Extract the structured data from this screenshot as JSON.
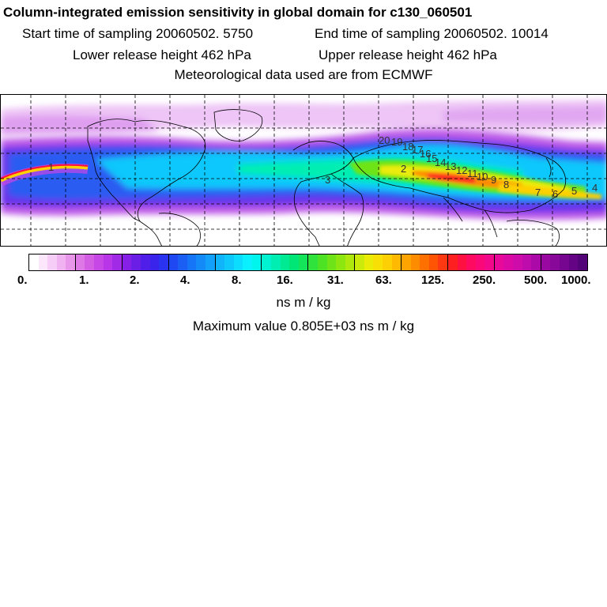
{
  "header": {
    "title": "Column-integrated emission sensitivity in global domain for c130_060501",
    "start_label": "Start time of sampling 20060502.  5750",
    "end_label": "End time of sampling 20060502. 10014",
    "lower_label": "Lower release height  462 hPa",
    "upper_label": "Upper release height  462 hPa",
    "met_label": "Meteorological data used are from ECMWF"
  },
  "map": {
    "trajectory_labels": [
      "20",
      "19",
      "18",
      "17",
      "16",
      "15",
      "14",
      "13",
      "12",
      "11",
      "10",
      "9",
      "8",
      "7",
      "6",
      "5",
      "4",
      "3",
      "2",
      "1"
    ]
  },
  "colorbar": {
    "tick_labels": [
      "0.",
      "1.",
      "2.",
      "4.",
      "8.",
      "16.",
      "31.",
      "63.",
      "125.",
      "250.",
      "500.",
      "1000."
    ],
    "colors": [
      "#ffffff",
      "#fbe6fb",
      "#f6cdf6",
      "#f0b2f0",
      "#e896ea",
      "#de78e6",
      "#d35ee4",
      "#c746e6",
      "#b936e8",
      "#a12ae6",
      "#8620e6",
      "#6a1ee6",
      "#4f1ee8",
      "#3a24ec",
      "#2a34f0",
      "#2048f2",
      "#1a5ef4",
      "#1674f6",
      "#148af8",
      "#12a0fa",
      "#10b4fb",
      "#0ec8fc",
      "#0cdcfd",
      "#0af0fe",
      "#00f6ec",
      "#00f2d0",
      "#00eeb2",
      "#00ea94",
      "#00e676",
      "#14e45a",
      "#30e23c",
      "#4ee224",
      "#6ee418",
      "#8ee610",
      "#aee80c",
      "#ccea0a",
      "#eaec08",
      "#f8e006",
      "#fcd004",
      "#feba02",
      "#fea400",
      "#fe8c00",
      "#fe7000",
      "#fe5404",
      "#fe3810",
      "#fe2020",
      "#fe1040",
      "#fe0a60",
      "#fa0878",
      "#f2088a",
      "#e8089a",
      "#dc0aa4",
      "#ce0caa",
      "#be0cac",
      "#ac0aa8",
      "#9a08a2",
      "#88089a",
      "#760690",
      "#640484",
      "#520478"
    ],
    "units": "ns m / kg"
  },
  "footer": {
    "max_value_text": "Maximum value  0.805E+03 ns m / kg"
  }
}
